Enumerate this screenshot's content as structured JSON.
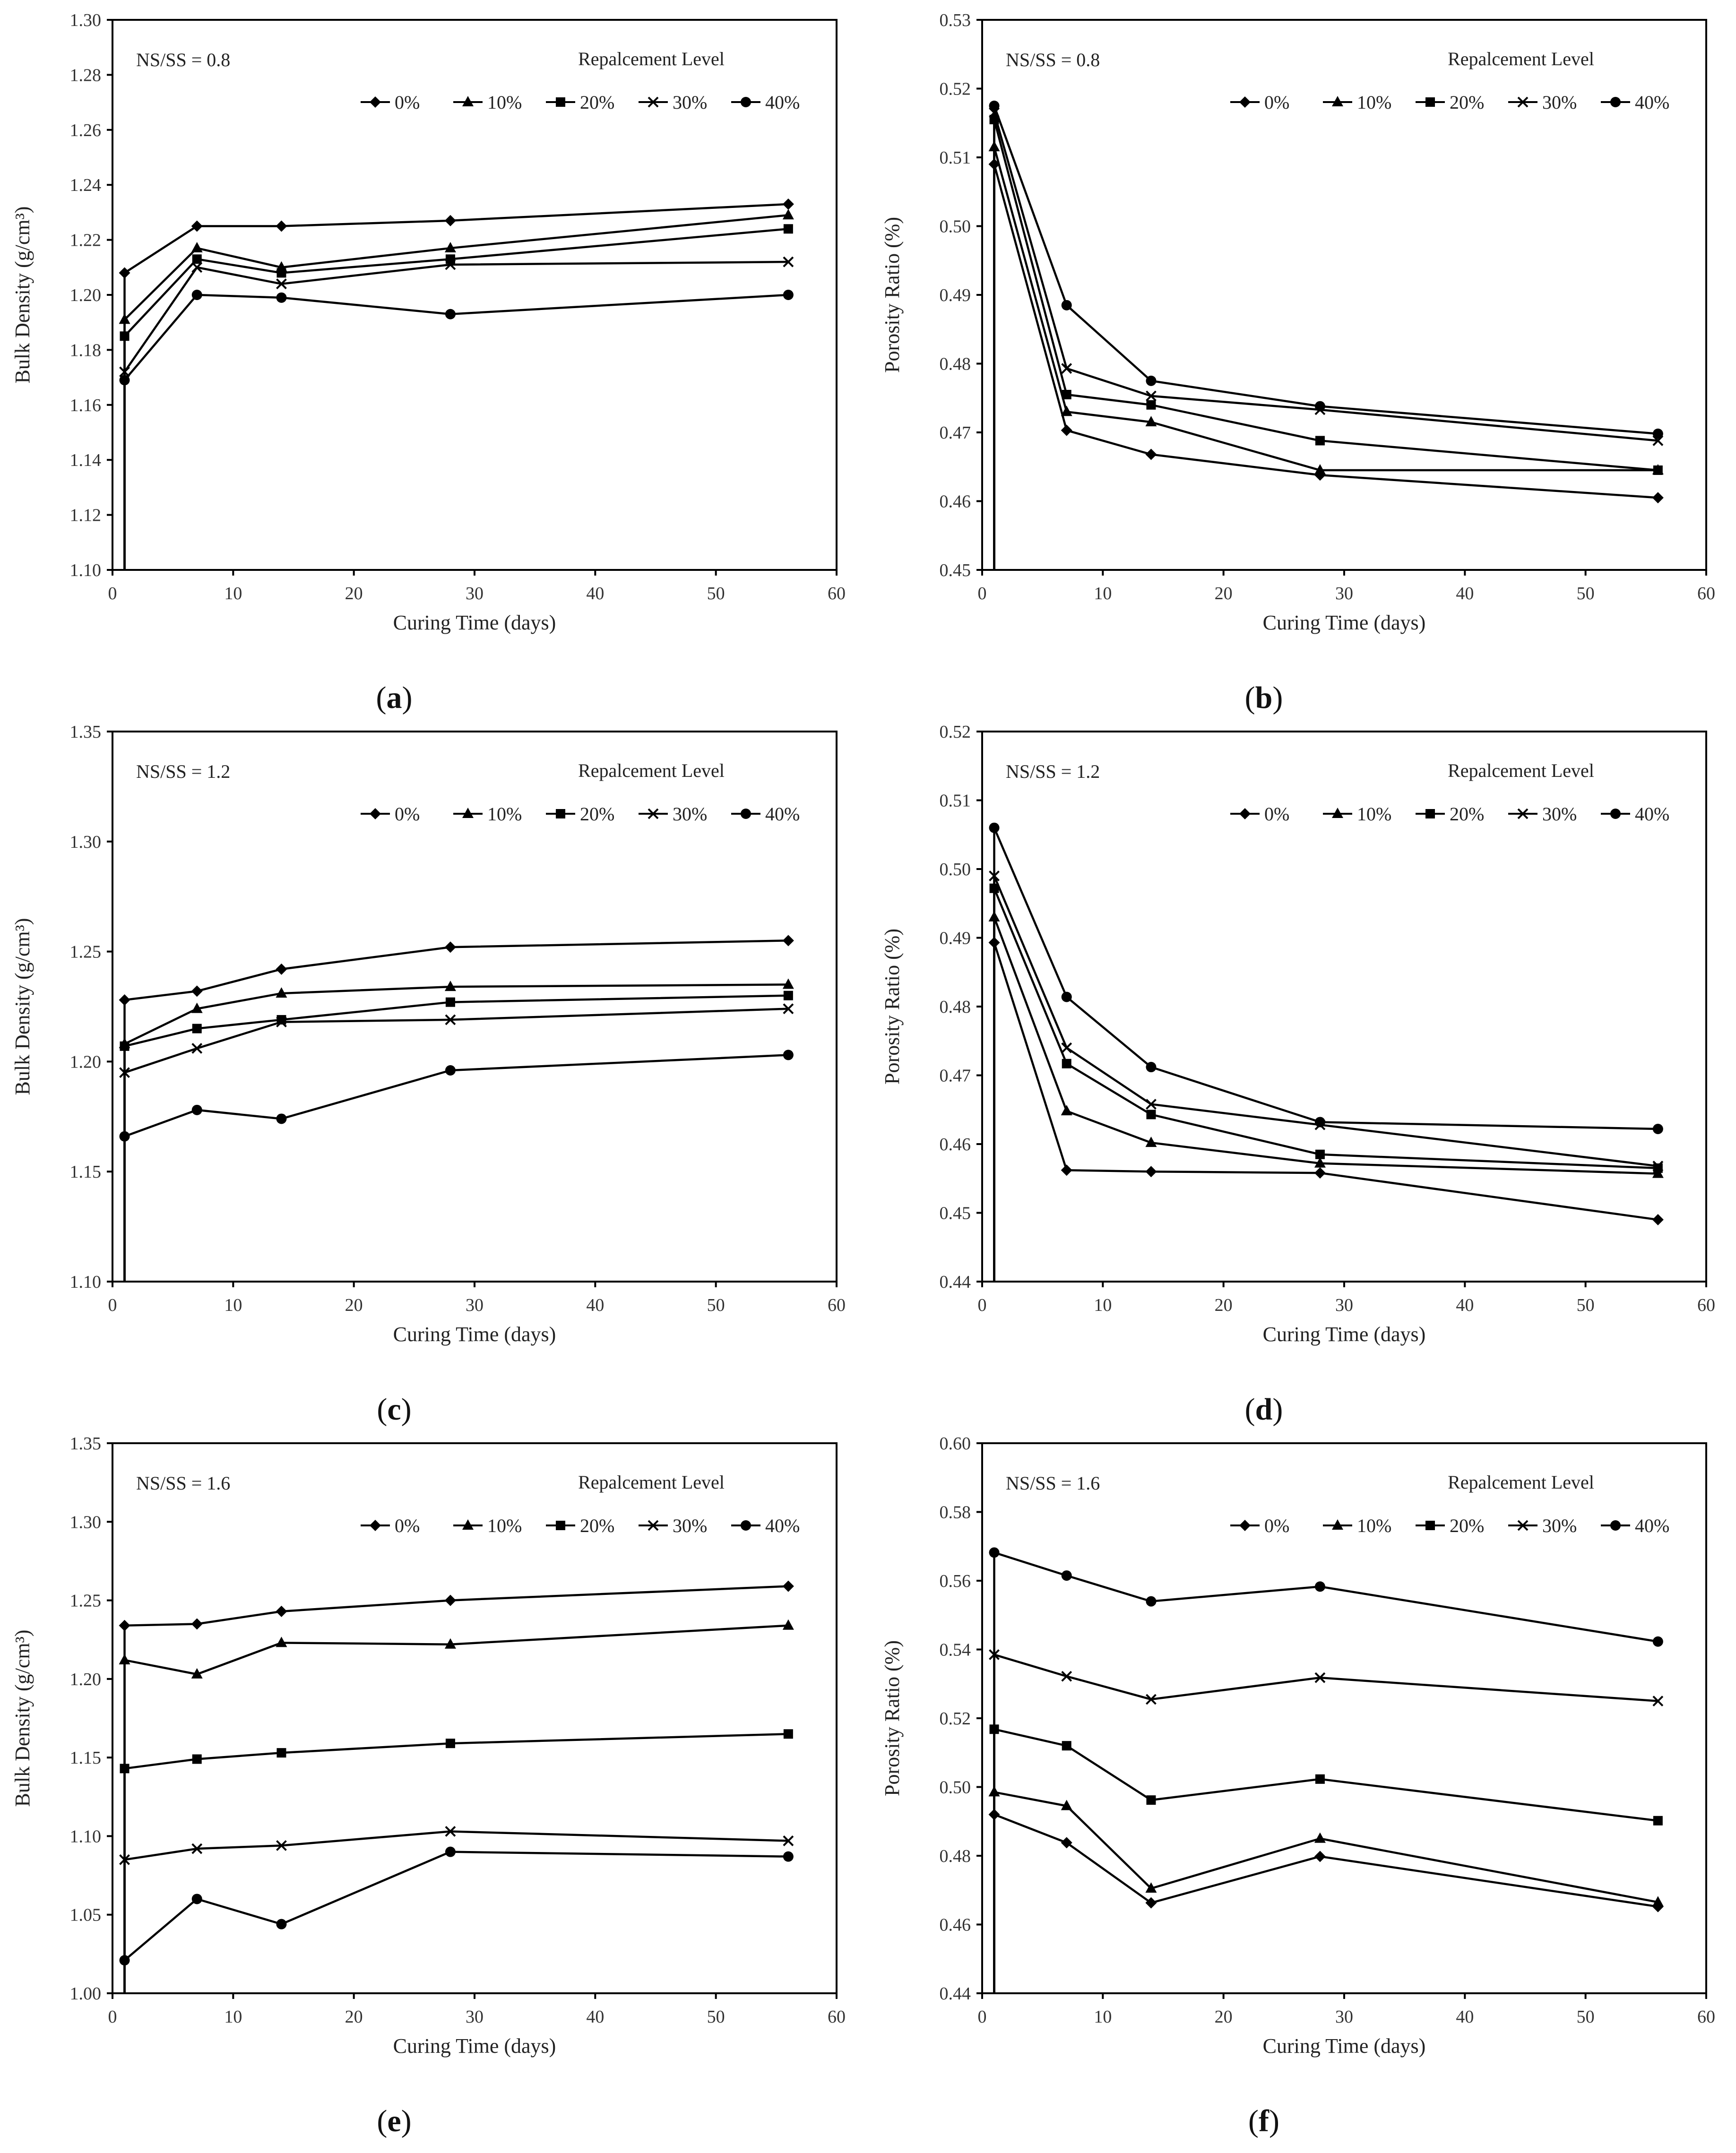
{
  "figure": {
    "legend_title": "Repalcement Level",
    "legend_labels": [
      "0%",
      "10%",
      "20%",
      "30%",
      "40%"
    ],
    "legend_markers": [
      "diamond",
      "triangle",
      "square",
      "x",
      "circle"
    ],
    "line_color": "#000000"
  },
  "chart_data": [
    {
      "type": "line",
      "panel": "(a)",
      "caption_letter": "a",
      "note": "NS/SS = 0.8",
      "xlabel": "Curing Time (days)",
      "ylabel": "Bulk Density (g/cm³)",
      "xlim": [
        0,
        60
      ],
      "xticks": [
        0,
        10,
        20,
        30,
        40,
        50,
        60
      ],
      "ylim": [
        1.1,
        1.3
      ],
      "yticks": [
        "1.10",
        "1.12",
        "1.14",
        "1.16",
        "1.18",
        "1.20",
        "1.22",
        "1.24",
        "1.26",
        "1.28",
        "1.30"
      ],
      "x": [
        1,
        7,
        14,
        28,
        56
      ],
      "series": [
        {
          "name": "0%",
          "marker": "diamond",
          "values": [
            1.208,
            1.225,
            1.225,
            1.227,
            1.233
          ]
        },
        {
          "name": "10%",
          "marker": "triangle",
          "values": [
            1.191,
            1.217,
            1.21,
            1.217,
            1.229
          ]
        },
        {
          "name": "20%",
          "marker": "square",
          "values": [
            1.185,
            1.213,
            1.208,
            1.213,
            1.224
          ]
        },
        {
          "name": "30%",
          "marker": "x",
          "values": [
            1.172,
            1.21,
            1.204,
            1.211,
            1.212
          ]
        },
        {
          "name": "40%",
          "marker": "circle",
          "values": [
            1.169,
            1.2,
            1.199,
            1.193,
            1.2
          ]
        }
      ]
    },
    {
      "type": "line",
      "panel": "(b)",
      "caption_letter": "b",
      "note": "NS/SS = 0.8",
      "xlabel": "Curing Time (days)",
      "ylabel": "Porosity Ratio (%)",
      "xlim": [
        0,
        60
      ],
      "xticks": [
        0,
        10,
        20,
        30,
        40,
        50,
        60
      ],
      "ylim": [
        0.45,
        0.53
      ],
      "yticks": [
        "0.45",
        "0.46",
        "0.47",
        "0.48",
        "0.49",
        "0.50",
        "0.51",
        "0.52",
        "0.53"
      ],
      "x": [
        1,
        7,
        14,
        28,
        56
      ],
      "series": [
        {
          "name": "0%",
          "marker": "diamond",
          "values": [
            0.509,
            0.4703,
            0.4668,
            0.4638,
            0.4605
          ]
        },
        {
          "name": "10%",
          "marker": "triangle",
          "values": [
            0.5115,
            0.473,
            0.4715,
            0.4645,
            0.4645
          ]
        },
        {
          "name": "20%",
          "marker": "square",
          "values": [
            0.5155,
            0.4755,
            0.474,
            0.4688,
            0.4645
          ]
        },
        {
          "name": "30%",
          "marker": "x",
          "values": [
            0.5165,
            0.4793,
            0.4753,
            0.4733,
            0.4688
          ]
        },
        {
          "name": "40%",
          "marker": "circle",
          "values": [
            0.5175,
            0.4885,
            0.4775,
            0.4738,
            0.4698
          ]
        }
      ]
    },
    {
      "type": "line",
      "panel": "(c)",
      "caption_letter": "c",
      "note": "NS/SS = 1.2",
      "xlabel": "Curing Time (days)",
      "ylabel": "Bulk Density (g/cm³)",
      "xlim": [
        0,
        60
      ],
      "xticks": [
        0,
        10,
        20,
        30,
        40,
        50,
        60
      ],
      "ylim": [
        1.1,
        1.35
      ],
      "yticks": [
        "1.10",
        "1.15",
        "1.20",
        "1.25",
        "1.30",
        "1.35"
      ],
      "x": [
        1,
        7,
        14,
        28,
        56
      ],
      "series": [
        {
          "name": "0%",
          "marker": "diamond",
          "values": [
            1.228,
            1.232,
            1.242,
            1.252,
            1.255
          ]
        },
        {
          "name": "10%",
          "marker": "triangle",
          "values": [
            1.208,
            1.224,
            1.231,
            1.234,
            1.235
          ]
        },
        {
          "name": "20%",
          "marker": "square",
          "values": [
            1.207,
            1.215,
            1.219,
            1.227,
            1.23
          ]
        },
        {
          "name": "30%",
          "marker": "x",
          "values": [
            1.195,
            1.206,
            1.218,
            1.219,
            1.224
          ]
        },
        {
          "name": "40%",
          "marker": "circle",
          "values": [
            1.166,
            1.178,
            1.174,
            1.196,
            1.203
          ]
        }
      ]
    },
    {
      "type": "line",
      "panel": "(d)",
      "caption_letter": "d",
      "note": "NS/SS = 1.2",
      "xlabel": "Curing Time (days)",
      "ylabel": "Porosity Ratio (%)",
      "xlim": [
        0,
        60
      ],
      "xticks": [
        0,
        10,
        20,
        30,
        40,
        50,
        60
      ],
      "ylim": [
        0.44,
        0.52
      ],
      "yticks": [
        "0.44",
        "0.45",
        "0.46",
        "0.47",
        "0.48",
        "0.49",
        "0.50",
        "0.51",
        "0.52"
      ],
      "x": [
        1,
        7,
        14,
        28,
        56
      ],
      "series": [
        {
          "name": "0%",
          "marker": "diamond",
          "values": [
            0.4893,
            0.4562,
            0.456,
            0.4558,
            0.449
          ]
        },
        {
          "name": "10%",
          "marker": "triangle",
          "values": [
            0.493,
            0.4648,
            0.4602,
            0.4572,
            0.4557
          ]
        },
        {
          "name": "20%",
          "marker": "square",
          "values": [
            0.4972,
            0.4717,
            0.4643,
            0.4585,
            0.4565
          ]
        },
        {
          "name": "30%",
          "marker": "x",
          "values": [
            0.499,
            0.474,
            0.4658,
            0.4628,
            0.4568
          ]
        },
        {
          "name": "40%",
          "marker": "circle",
          "values": [
            0.506,
            0.4814,
            0.4712,
            0.4632,
            0.4622
          ]
        }
      ]
    },
    {
      "type": "line",
      "panel": "(e)",
      "caption_letter": "e",
      "note": "NS/SS = 1.6",
      "xlabel": "Curing Time (days)",
      "ylabel": "Bulk Density (g/cm³)",
      "xlim": [
        0,
        60
      ],
      "xticks": [
        0,
        10,
        20,
        30,
        40,
        50,
        60
      ],
      "ylim": [
        1.0,
        1.35
      ],
      "yticks": [
        "1.00",
        "1.05",
        "1.10",
        "1.15",
        "1.20",
        "1.25",
        "1.30",
        "1.35"
      ],
      "x": [
        1,
        7,
        14,
        28,
        56
      ],
      "series": [
        {
          "name": "0%",
          "marker": "diamond",
          "values": [
            1.234,
            1.235,
            1.243,
            1.25,
            1.259
          ]
        },
        {
          "name": "10%",
          "marker": "triangle",
          "values": [
            1.212,
            1.203,
            1.223,
            1.222,
            1.234
          ]
        },
        {
          "name": "20%",
          "marker": "square",
          "values": [
            1.143,
            1.149,
            1.153,
            1.159,
            1.165
          ]
        },
        {
          "name": "30%",
          "marker": "x",
          "values": [
            1.085,
            1.092,
            1.094,
            1.103,
            1.097
          ]
        },
        {
          "name": "40%",
          "marker": "circle",
          "values": [
            1.021,
            1.06,
            1.044,
            1.09,
            1.087
          ]
        }
      ]
    },
    {
      "type": "line",
      "panel": "(f)",
      "caption_letter": "f",
      "note": "NS/SS = 1.6",
      "xlabel": "Curing Time (days)",
      "ylabel": "Porosity Ratio (%)",
      "xlim": [
        0,
        60
      ],
      "xticks": [
        0,
        10,
        20,
        30,
        40,
        50,
        60
      ],
      "ylim": [
        0.44,
        0.6
      ],
      "yticks": [
        "0.44",
        "0.46",
        "0.48",
        "0.50",
        "0.52",
        "0.54",
        "0.56",
        "0.58",
        "0.60"
      ],
      "x": [
        1,
        7,
        14,
        28,
        56
      ],
      "series": [
        {
          "name": "0%",
          "marker": "diamond",
          "values": [
            0.492,
            0.4838,
            0.4663,
            0.4798,
            0.4652
          ]
        },
        {
          "name": "10%",
          "marker": "triangle",
          "values": [
            0.4985,
            0.4945,
            0.4705,
            0.485,
            0.4665
          ]
        },
        {
          "name": "20%",
          "marker": "square",
          "values": [
            0.5168,
            0.512,
            0.4962,
            0.5023,
            0.4902
          ]
        },
        {
          "name": "30%",
          "marker": "x",
          "values": [
            0.5385,
            0.5322,
            0.5255,
            0.5318,
            0.525
          ]
        },
        {
          "name": "40%",
          "marker": "circle",
          "values": [
            0.5682,
            0.5615,
            0.554,
            0.5583,
            0.5423
          ]
        }
      ]
    }
  ]
}
